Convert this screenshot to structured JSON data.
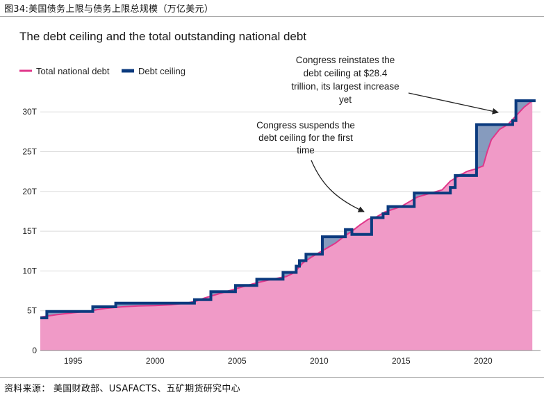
{
  "figure_caption": "图34:美国债务上限与债务上限总规模（万亿美元）",
  "source_note": "资料来源： 美国财政部、USAFACTS、五矿期货研究中心",
  "colors": {
    "debt_fill": "#f09ac7",
    "debt_line": "#e0368a",
    "ceiling_line": "#0b3a7e",
    "gap_fill": "#7189b3",
    "grid": "#dcdcdc"
  },
  "chart_data": {
    "type": "area",
    "title": "The debt ceiling and the total outstanding national debt",
    "xlabel": "",
    "ylabel": "",
    "xlim": [
      1993.0,
      2023.5
    ],
    "ylim": [
      0,
      31.5
    ],
    "x_ticks": [
      1995,
      2000,
      2005,
      2010,
      2015,
      2020
    ],
    "x_tick_labels": [
      "1995",
      "2000",
      "2005",
      "2010",
      "2015",
      "2020"
    ],
    "y_ticks": [
      0,
      5,
      10,
      15,
      20,
      25,
      30
    ],
    "y_tick_labels": [
      "0",
      "5T",
      "10T",
      "15T",
      "20T",
      "25T",
      "30T"
    ],
    "grid": "horizontal",
    "legend_position": "top-left",
    "series": [
      {
        "name": "Total national debt",
        "kind": "area-line",
        "points": [
          [
            1993.0,
            4.2
          ],
          [
            1993.5,
            4.35
          ],
          [
            1994.0,
            4.5
          ],
          [
            1995.0,
            4.75
          ],
          [
            1996.0,
            4.95
          ],
          [
            1996.5,
            5.15
          ],
          [
            1997.0,
            5.3
          ],
          [
            1998.0,
            5.5
          ],
          [
            1999.0,
            5.6
          ],
          [
            2000.0,
            5.65
          ],
          [
            2001.0,
            5.75
          ],
          [
            2002.0,
            6.0
          ],
          [
            2002.5,
            6.2
          ],
          [
            2003.0,
            6.6
          ],
          [
            2004.0,
            7.2
          ],
          [
            2005.0,
            7.8
          ],
          [
            2006.0,
            8.4
          ],
          [
            2007.0,
            8.9
          ],
          [
            2008.0,
            9.3
          ],
          [
            2008.5,
            9.8
          ],
          [
            2009.0,
            11.0
          ],
          [
            2009.5,
            11.7
          ],
          [
            2010.0,
            12.3
          ],
          [
            2011.0,
            13.5
          ],
          [
            2011.5,
            14.3
          ],
          [
            2012.0,
            15.0
          ],
          [
            2012.5,
            15.8
          ],
          [
            2013.0,
            16.5
          ],
          [
            2013.5,
            16.8
          ],
          [
            2014.0,
            17.4
          ],
          [
            2015.0,
            18.1
          ],
          [
            2016.0,
            19.3
          ],
          [
            2017.0,
            19.9
          ],
          [
            2017.5,
            20.2
          ],
          [
            2018.0,
            21.3
          ],
          [
            2019.0,
            22.5
          ],
          [
            2019.5,
            22.8
          ],
          [
            2020.0,
            23.2
          ],
          [
            2020.25,
            25.0
          ],
          [
            2020.5,
            26.5
          ],
          [
            2021.0,
            27.8
          ],
          [
            2021.5,
            28.4
          ],
          [
            2022.0,
            29.5
          ],
          [
            2022.5,
            30.6
          ],
          [
            2023.0,
            31.4
          ]
        ]
      },
      {
        "name": "Debt ceiling",
        "kind": "step",
        "points": [
          [
            1993.0,
            4.1
          ],
          [
            1993.4,
            4.9
          ],
          [
            1996.2,
            5.5
          ],
          [
            1997.6,
            5.95
          ],
          [
            2002.4,
            6.4
          ],
          [
            2003.4,
            7.4
          ],
          [
            2004.9,
            8.18
          ],
          [
            2006.2,
            8.97
          ],
          [
            2007.8,
            9.82
          ],
          [
            2008.6,
            10.6
          ],
          [
            2008.8,
            11.3
          ],
          [
            2009.2,
            12.1
          ],
          [
            2010.2,
            14.3
          ],
          [
            2011.6,
            15.2
          ],
          [
            2011.8,
            15.2
          ],
          [
            2012.0,
            14.6
          ],
          [
            2013.2,
            16.7
          ],
          [
            2013.9,
            17.2
          ],
          [
            2014.2,
            18.1
          ],
          [
            2015.8,
            19.8
          ],
          [
            2017.2,
            19.8
          ],
          [
            2018.0,
            20.5
          ],
          [
            2018.3,
            22.0
          ],
          [
            2019.6,
            28.4
          ],
          [
            2021.8,
            28.9
          ],
          [
            2022.0,
            31.4
          ],
          [
            2023.2,
            31.4
          ]
        ]
      }
    ],
    "annotations": [
      {
        "id": "suspends",
        "lines": [
          "Congress suspends the",
          "debt ceiling for the first",
          "time"
        ],
        "target": [
          2013.0,
          16.7
        ]
      },
      {
        "id": "reinstates",
        "lines": [
          "Congress reinstates the",
          "debt ceiling at $28.4",
          "trillion, its largest increase",
          "yet"
        ],
        "target": [
          2021.8,
          28.4
        ]
      }
    ]
  }
}
